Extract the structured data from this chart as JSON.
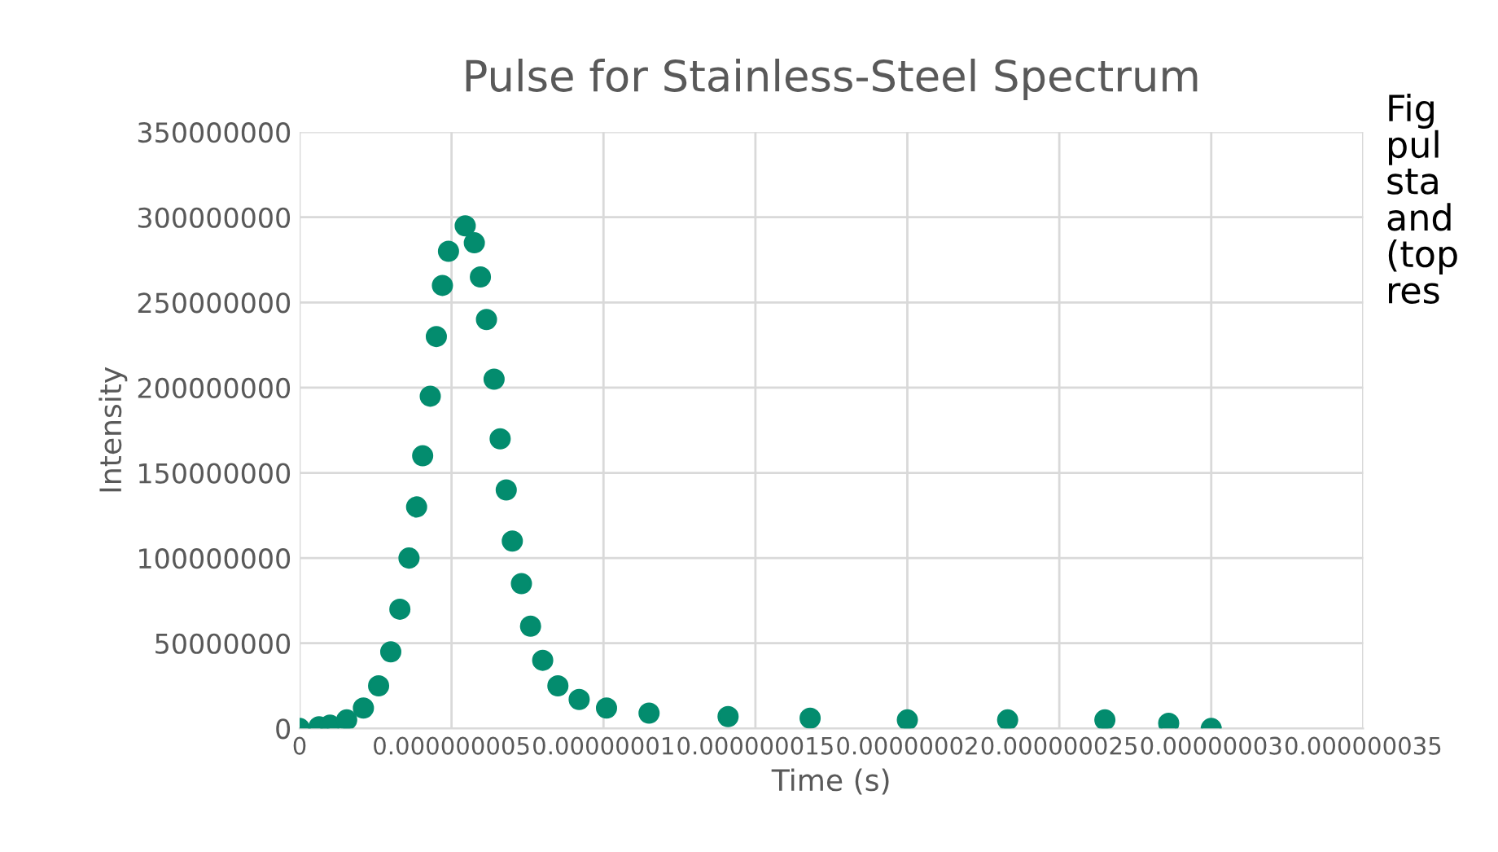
{
  "chart_data": {
    "type": "scatter",
    "title": "Pulse for Stainless-Steel Spectrum",
    "xlabel": "Time (s)",
    "ylabel": "Intensity",
    "x": [
      0,
      6.4e-10,
      1e-09,
      1.55e-09,
      2.1e-09,
      2.6e-09,
      3e-09,
      3.3e-09,
      3.6e-09,
      3.85e-09,
      4.05e-09,
      4.3e-09,
      4.5e-09,
      4.7e-09,
      4.9e-09,
      5.45e-09,
      5.75e-09,
      5.95e-09,
      6.15e-09,
      6.4e-09,
      6.6e-09,
      6.8e-09,
      7e-09,
      7.3e-09,
      7.6e-09,
      8e-09,
      8.5e-09,
      9.2e-09,
      1.01e-08,
      1.15e-08,
      1.41e-08,
      1.68e-08,
      2e-08,
      2.33e-08,
      2.65e-08,
      2.86e-08,
      3e-08
    ],
    "series": [
      {
        "color": "#038c6e",
        "values": [
          0,
          1000000,
          2000000,
          5000000,
          12000000,
          25000000,
          45000000,
          70000000,
          100000000,
          130000000,
          160000000,
          195000000,
          230000000,
          260000000,
          280000000,
          295000000,
          285000000,
          265000000,
          240000000,
          205000000,
          170000000,
          140000000,
          110000000,
          85000000,
          60000000,
          40000000,
          25000000,
          17000000,
          12000000,
          9000000,
          7000000,
          6000000,
          5000000,
          5000000,
          5000000,
          3000000,
          0
        ]
      }
    ],
    "xlim": [
      0,
      3.5e-08
    ],
    "xticks": [
      0,
      {
        "value": 5e-09,
        "label": "0.000000005"
      },
      {
        "value": 1e-08,
        "label": "0.00000001"
      },
      {
        "value": 1.5e-08,
        "label": "0.000000015"
      },
      {
        "value": 2e-08,
        "label": "0.00000002"
      },
      {
        "value": 2.5e-08,
        "label": "0.000000025"
      },
      {
        "value": 3e-08,
        "label": "0.00000003"
      },
      {
        "value": 3.5e-08,
        "label": "0.000000035"
      }
    ],
    "ylim": [
      0,
      350000000
    ],
    "yticks": [
      0,
      50000000,
      100000000,
      150000000,
      200000000,
      250000000,
      300000000,
      350000000
    ],
    "grid": true,
    "marker": "circle",
    "annotations": [
      "Fig\npul\nsta\nand\n(top\nres"
    ]
  }
}
